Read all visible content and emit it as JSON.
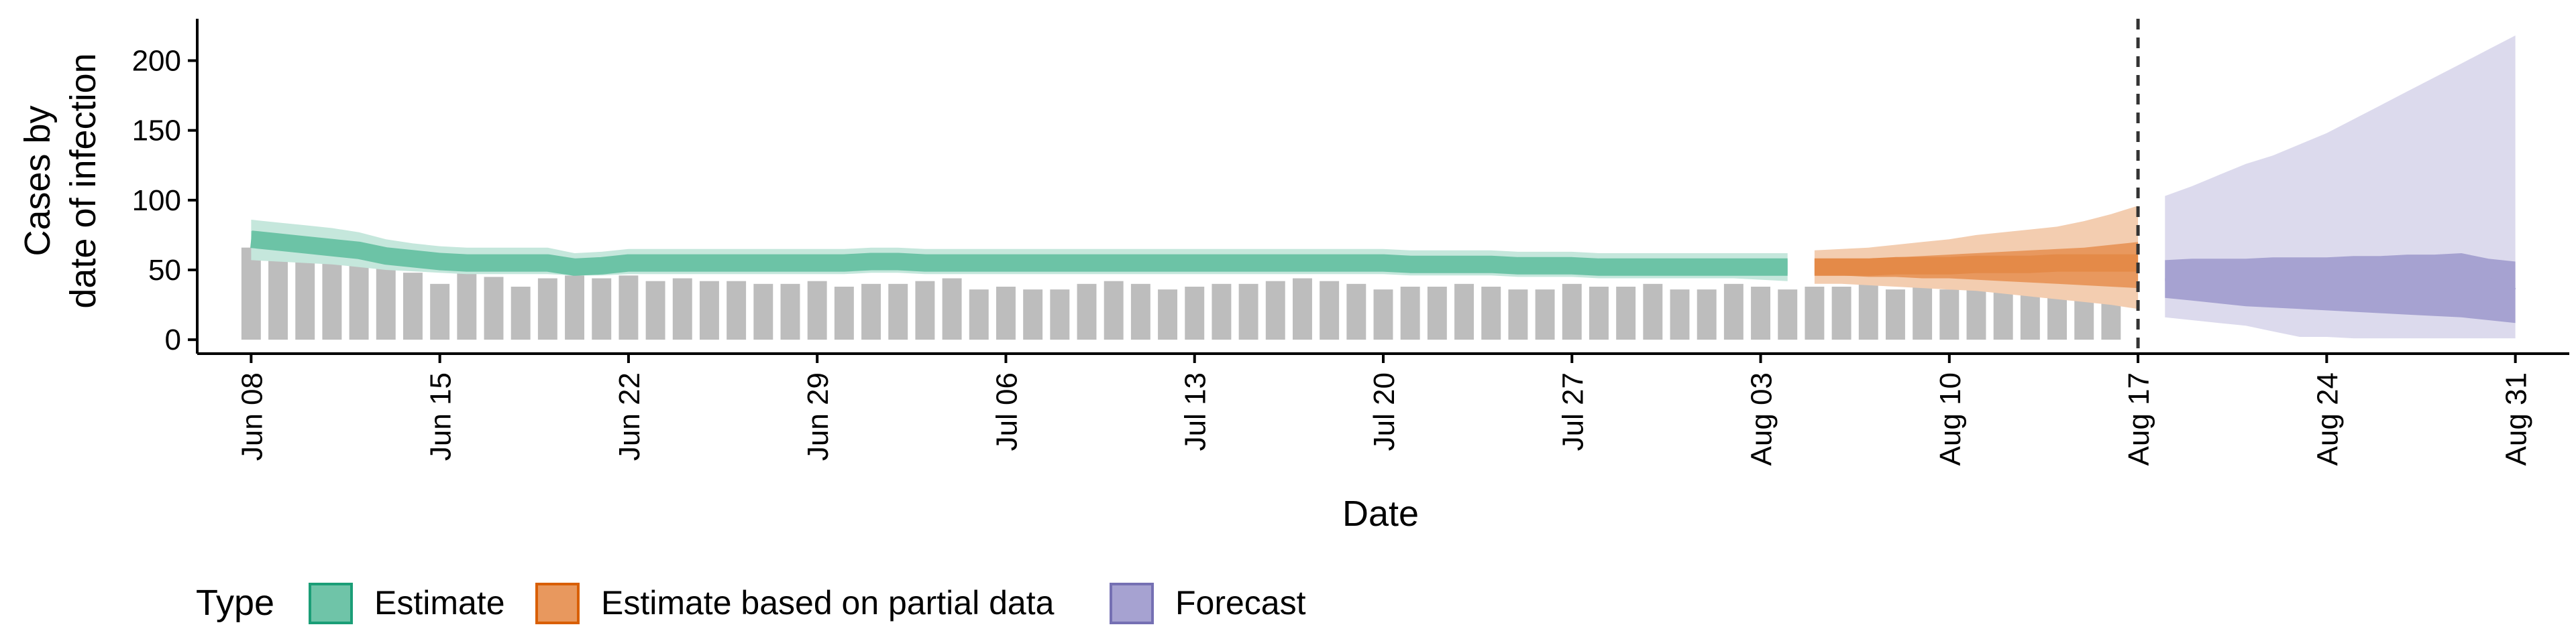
{
  "chart_data": {
    "type": "area",
    "xlabel": "Date",
    "ylabel_lines": [
      "Cases by",
      "date of infection"
    ],
    "ylim": [
      -10,
      230
    ],
    "yticks": [
      0,
      50,
      100,
      150,
      200
    ],
    "x_start": "2020-06-06",
    "x_end": "2020-09-02",
    "xticks": [
      {
        "date": "2020-06-08",
        "label": "Jun 08"
      },
      {
        "date": "2020-06-15",
        "label": "Jun 15"
      },
      {
        "date": "2020-06-22",
        "label": "Jun 22"
      },
      {
        "date": "2020-06-29",
        "label": "Jun 29"
      },
      {
        "date": "2020-07-06",
        "label": "Jul 06"
      },
      {
        "date": "2020-07-13",
        "label": "Jul 13"
      },
      {
        "date": "2020-07-20",
        "label": "Jul 20"
      },
      {
        "date": "2020-07-27",
        "label": "Jul 27"
      },
      {
        "date": "2020-08-03",
        "label": "Aug 03"
      },
      {
        "date": "2020-08-10",
        "label": "Aug 10"
      },
      {
        "date": "2020-08-17",
        "label": "Aug 17"
      },
      {
        "date": "2020-08-24",
        "label": "Aug 24"
      },
      {
        "date": "2020-08-31",
        "label": "Aug 31"
      }
    ],
    "forecast_date": "2020-08-17",
    "bars": {
      "start_date": "2020-06-08",
      "values": [
        66,
        62,
        60,
        58,
        60,
        52,
        48,
        40,
        48,
        45,
        38,
        44,
        46,
        44,
        46,
        42,
        44,
        42,
        42,
        40,
        40,
        42,
        38,
        40,
        40,
        42,
        44,
        36,
        38,
        36,
        36,
        40,
        42,
        40,
        36,
        38,
        40,
        40,
        42,
        44,
        42,
        40,
        36,
        38,
        38,
        40,
        38,
        36,
        36,
        40,
        38,
        38,
        40,
        36,
        36,
        40,
        38,
        36,
        38,
        38,
        40,
        36,
        38,
        36,
        36,
        38,
        38,
        36,
        36,
        38
      ]
    },
    "series": [
      {
        "name": "Estimate",
        "start_date": "2020-06-08",
        "median": [
          72,
          70,
          68,
          66,
          64,
          60,
          58,
          56,
          55,
          55,
          55,
          55,
          52,
          53,
          55,
          55,
          55,
          55,
          55,
          55,
          55,
          55,
          55,
          56,
          56,
          55,
          55,
          55,
          55,
          55,
          55,
          55,
          55,
          55,
          55,
          55,
          55,
          55,
          55,
          55,
          55,
          55,
          55,
          54,
          54,
          54,
          54,
          53,
          53,
          53,
          52,
          52,
          52,
          52,
          52,
          52,
          52,
          52
        ],
        "inner_lo": [
          66,
          65,
          63,
          61,
          59,
          56,
          54,
          52,
          51,
          51,
          51,
          51,
          49,
          50,
          51,
          51,
          51,
          51,
          51,
          51,
          51,
          51,
          51,
          52,
          52,
          51,
          51,
          51,
          51,
          51,
          51,
          51,
          51,
          51,
          51,
          51,
          51,
          51,
          51,
          51,
          51,
          51,
          51,
          50,
          50,
          50,
          50,
          49,
          49,
          49,
          48,
          48,
          48,
          48,
          48,
          48,
          47,
          47
        ],
        "inner_hi": [
          78,
          76,
          74,
          72,
          70,
          65,
          62,
          60,
          59,
          59,
          59,
          59,
          56,
          57,
          59,
          59,
          59,
          59,
          59,
          59,
          59,
          59,
          59,
          60,
          60,
          59,
          59,
          59,
          59,
          59,
          59,
          59,
          59,
          59,
          59,
          59,
          59,
          59,
          59,
          59,
          59,
          59,
          59,
          58,
          58,
          58,
          58,
          57,
          57,
          57,
          56,
          56,
          56,
          56,
          56,
          56,
          57,
          57
        ],
        "outer_lo": [
          57,
          56,
          55,
          54,
          52,
          50,
          49,
          48,
          47,
          47,
          47,
          47,
          46,
          46,
          47,
          47,
          47,
          47,
          47,
          47,
          47,
          47,
          47,
          48,
          48,
          47,
          47,
          47,
          47,
          47,
          47,
          47,
          47,
          47,
          47,
          47,
          47,
          47,
          47,
          47,
          47,
          47,
          47,
          46,
          46,
          46,
          46,
          45,
          45,
          45,
          44,
          44,
          44,
          44,
          44,
          44,
          43,
          42
        ],
        "outer_hi": [
          86,
          84,
          82,
          80,
          77,
          72,
          69,
          67,
          66,
          66,
          66,
          66,
          62,
          63,
          65,
          65,
          65,
          65,
          65,
          65,
          65,
          65,
          65,
          66,
          66,
          65,
          65,
          65,
          65,
          65,
          65,
          65,
          65,
          65,
          65,
          65,
          65,
          65,
          65,
          65,
          65,
          65,
          65,
          64,
          64,
          64,
          64,
          63,
          63,
          63,
          62,
          62,
          62,
          62,
          62,
          62,
          62,
          62
        ]
      },
      {
        "name": "Estimate based on partial data",
        "start_date": "2020-08-05",
        "median": [
          52,
          52,
          52,
          53,
          53,
          53,
          54,
          54,
          54,
          55,
          55,
          55,
          55
        ],
        "inner_lo": [
          46,
          46,
          45,
          45,
          44,
          44,
          43,
          42,
          41,
          40,
          39,
          38,
          37
        ],
        "inner_hi": [
          58,
          58,
          58,
          59,
          60,
          61,
          62,
          63,
          64,
          65,
          66,
          68,
          70
        ],
        "outer_lo": [
          40,
          40,
          39,
          38,
          37,
          36,
          35,
          33,
          31,
          29,
          27,
          25,
          22
        ],
        "outer_hi": [
          64,
          65,
          66,
          68,
          70,
          72,
          75,
          77,
          79,
          81,
          85,
          90,
          96
        ]
      },
      {
        "name": "Forecast",
        "start_date": "2020-08-18",
        "median": [
          43,
          43,
          43,
          44,
          44,
          44,
          45,
          45,
          45,
          46,
          46,
          46,
          44,
          36
        ],
        "inner_lo": [
          30,
          28,
          26,
          24,
          23,
          22,
          21,
          20,
          19,
          18,
          17,
          16,
          14,
          12
        ],
        "inner_hi": [
          57,
          58,
          58,
          58,
          59,
          59,
          59,
          60,
          60,
          61,
          61,
          62,
          58,
          56
        ],
        "outer_lo": [
          16,
          14,
          12,
          10,
          6,
          2,
          2,
          1,
          1,
          1,
          1,
          1,
          1,
          1
        ],
        "outer_hi": [
          103,
          110,
          118,
          126,
          132,
          140,
          148,
          158,
          168,
          178,
          188,
          198,
          208,
          218
        ]
      }
    ],
    "legend": {
      "title": "Type",
      "placement": "bottom-left",
      "items": [
        {
          "label": "Estimate",
          "fill": "#6fc4a8",
          "stroke": "#1b9e77"
        },
        {
          "label": "Estimate based on partial data",
          "fill": "#e8985e",
          "stroke": "#d95f02"
        },
        {
          "label": "Forecast",
          "fill": "#a6a2d1",
          "stroke": "#7570b3"
        }
      ]
    },
    "colors": {
      "bars": "#bdbdbd",
      "estimate_outer": "#c5e7dc",
      "estimate_inner": "#8fd2bc",
      "estimate_median": "#6cc3a6",
      "partial_outer": "#f3cdb0",
      "partial_inner": "#e8985e",
      "partial_median": "#e48a48",
      "forecast_outer": "#dcdaed",
      "forecast_inner": "#a6a2d1",
      "vline": "#333333",
      "axis": "#000000"
    }
  }
}
